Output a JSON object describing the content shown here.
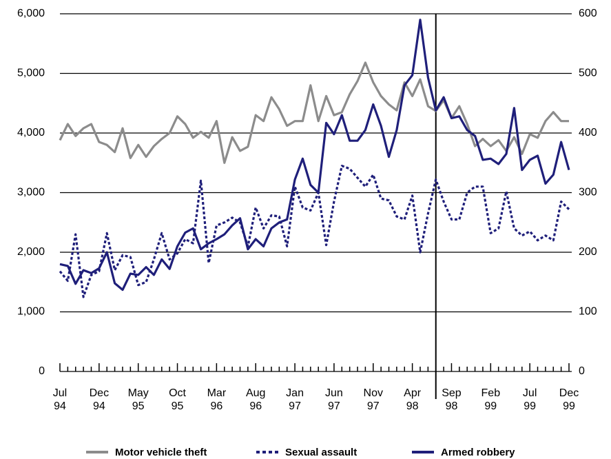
{
  "chart_data": {
    "type": "line",
    "categories": [
      "Jul 94",
      null,
      null,
      null,
      null,
      "Dec 94",
      null,
      null,
      null,
      null,
      "May 95",
      null,
      null,
      null,
      null,
      "Oct 95",
      null,
      null,
      null,
      null,
      "Mar 96",
      null,
      null,
      null,
      null,
      "Aug 96",
      null,
      null,
      null,
      null,
      "Jan 97",
      null,
      null,
      null,
      null,
      "Jun 97",
      null,
      null,
      null,
      null,
      "Nov 97",
      null,
      null,
      null,
      null,
      "Apr 98",
      null,
      null,
      null,
      null,
      "Sep 98",
      null,
      null,
      null,
      null,
      "Feb 99",
      null,
      null,
      null,
      null,
      "Jul 99",
      null,
      null,
      null,
      null,
      "Dec 99"
    ],
    "series": [
      {
        "name": "Motor vehicle theft",
        "color": "#8c8c8c",
        "style": "solid",
        "values": [
          3880,
          4150,
          3950,
          4080,
          4150,
          3850,
          3800,
          3680,
          4080,
          3580,
          3800,
          3600,
          3780,
          3900,
          4000,
          4280,
          4150,
          3920,
          4020,
          3920,
          4200,
          3500,
          3930,
          3700,
          3770,
          4300,
          4200,
          4600,
          4400,
          4120,
          4200,
          4200,
          4800,
          4200,
          4620,
          4300,
          4350,
          4650,
          4870,
          5180,
          4850,
          4620,
          4480,
          4380,
          4850,
          4620,
          4900,
          4450,
          4370,
          4550,
          4250,
          4450,
          4150,
          3780,
          3900,
          3780,
          3880,
          3700,
          3930,
          3650,
          3980,
          3920,
          4200,
          4350,
          4200,
          4200
        ]
      },
      {
        "name": "Sexual assault",
        "color": "#1f1f7a",
        "style": "dotted",
        "axis": "y2",
        "values": [
          168,
          152,
          230,
          125,
          162,
          168,
          232,
          170,
          195,
          192,
          145,
          150,
          188,
          232,
          188,
          198,
          222,
          215,
          320,
          182,
          245,
          250,
          258,
          250,
          210,
          275,
          240,
          262,
          260,
          210,
          310,
          275,
          270,
          300,
          212,
          285,
          345,
          340,
          325,
          310,
          330,
          290,
          287,
          260,
          255,
          295,
          200,
          265,
          322,
          285,
          255,
          255,
          300,
          310,
          310,
          232,
          240,
          302,
          240,
          228,
          235,
          220,
          228,
          220,
          285,
          272
        ]
      },
      {
        "name": "Armed robbery",
        "color": "#1f1f7a",
        "style": "solid",
        "axis": "y2",
        "values": [
          180,
          177,
          147,
          170,
          165,
          173,
          200,
          148,
          137,
          164,
          162,
          175,
          162,
          188,
          172,
          210,
          233,
          240,
          205,
          215,
          222,
          230,
          245,
          257,
          205,
          222,
          210,
          240,
          250,
          255,
          322,
          357,
          313,
          300,
          417,
          398,
          430,
          387,
          387,
          405,
          448,
          412,
          360,
          405,
          480,
          497,
          590,
          493,
          438,
          460,
          425,
          428,
          405,
          395,
          355,
          357,
          348,
          365,
          442,
          338,
          355,
          362,
          315,
          330,
          385,
          338
        ]
      }
    ],
    "ylim": [
      0,
      6000
    ],
    "yticks": [
      0,
      {
        "value": 1000,
        "label": "1,000"
      },
      {
        "value": 2000,
        "label": "2,000"
      },
      {
        "value": 3000,
        "label": "3,000"
      },
      {
        "value": 4000,
        "label": "4,000"
      },
      {
        "value": 5000,
        "label": "5,000"
      },
      {
        "value": 6000,
        "label": "6,000"
      }
    ],
    "y2lim": [
      0,
      600
    ],
    "y2ticks": [
      0,
      100,
      200,
      300,
      400,
      500,
      600
    ],
    "grid": true,
    "vline_index": 48,
    "legend": "bottom"
  }
}
